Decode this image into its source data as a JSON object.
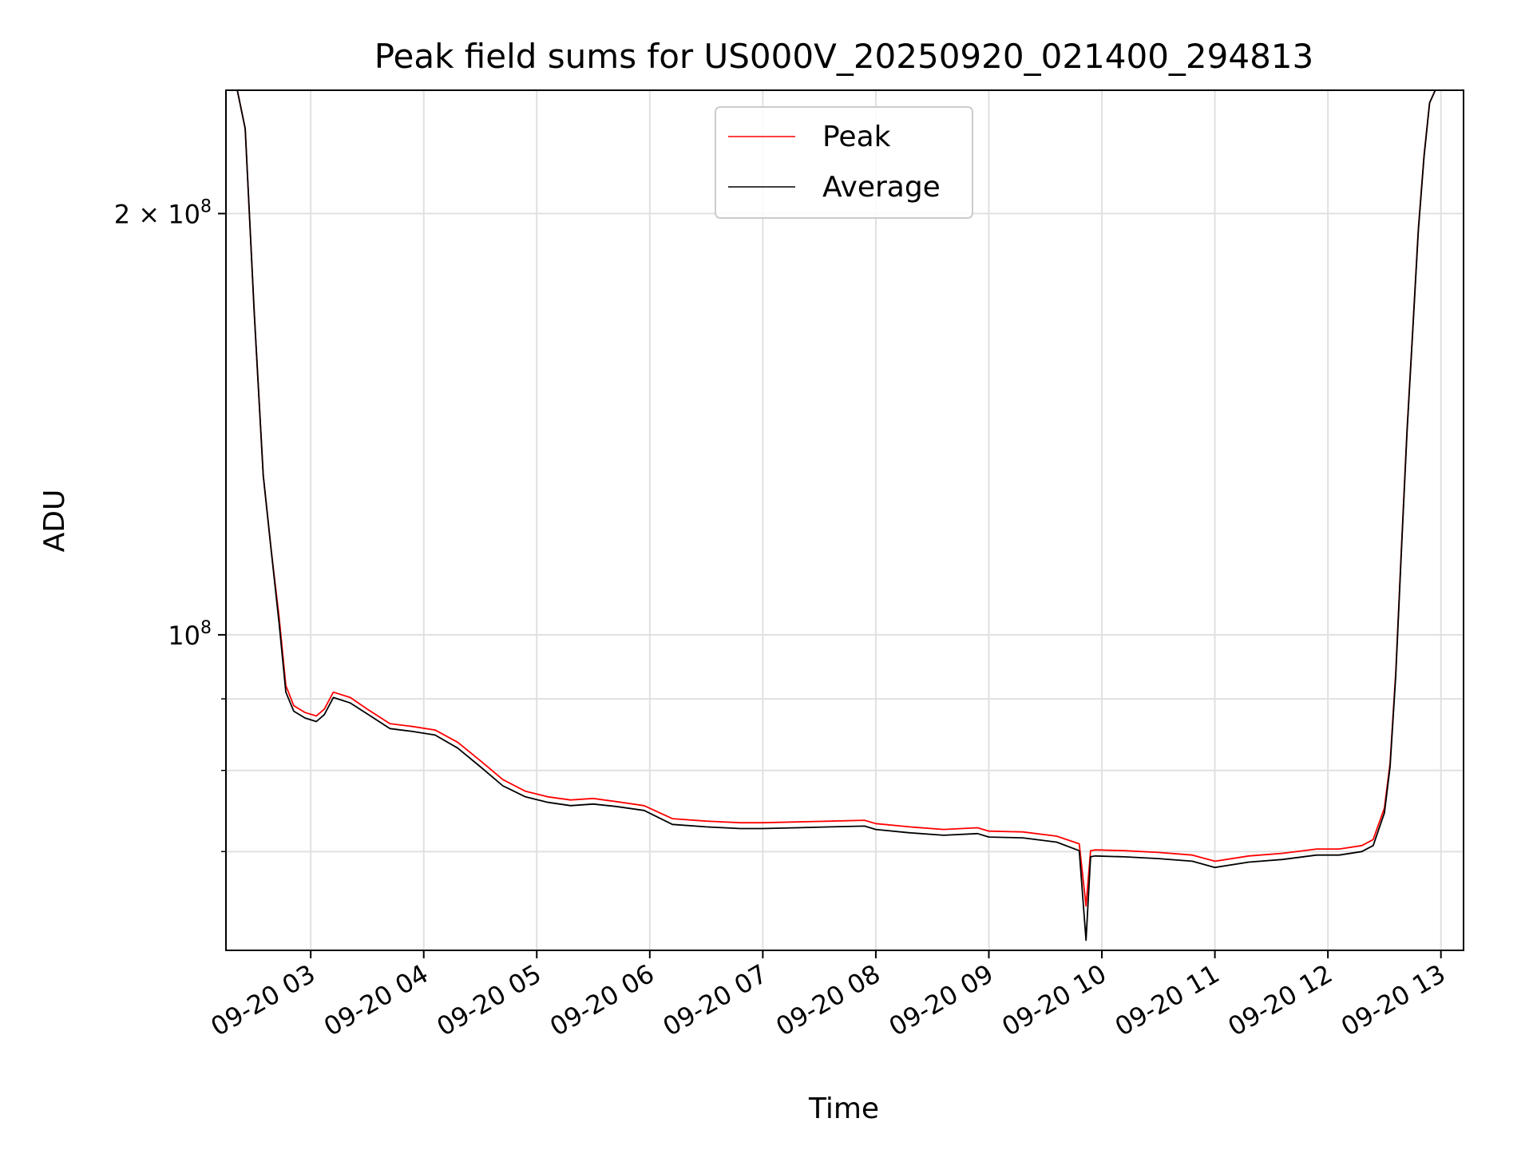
{
  "chart_data": {
    "type": "line",
    "title": "Peak field sums for US000V_20250920_021400_294813",
    "xlabel": "Time",
    "ylabel": "ADU",
    "yscale": "log",
    "ylim": [
      59500000,
      245000000
    ],
    "xlim_hours": [
      2.25,
      13.2
    ],
    "x_ticks": [
      {
        "hour": 3,
        "label": "09-20 03"
      },
      {
        "hour": 4,
        "label": "09-20 04"
      },
      {
        "hour": 5,
        "label": "09-20 05"
      },
      {
        "hour": 6,
        "label": "09-20 06"
      },
      {
        "hour": 7,
        "label": "09-20 07"
      },
      {
        "hour": 8,
        "label": "09-20 08"
      },
      {
        "hour": 9,
        "label": "09-20 09"
      },
      {
        "hour": 10,
        "label": "09-20 10"
      },
      {
        "hour": 11,
        "label": "09-20 11"
      },
      {
        "hour": 12,
        "label": "09-20 12"
      },
      {
        "hour": 13,
        "label": "09-20 13"
      }
    ],
    "y_major_ticks": [
      {
        "value": 100000000,
        "base": "10",
        "exp": "8",
        "mantissa": ""
      },
      {
        "value": 200000000,
        "base": "10",
        "exp": "8",
        "mantissa": "2 × "
      }
    ],
    "y_minor_ticks": [
      70000000,
      80000000,
      90000000
    ],
    "grid": true,
    "legend": {
      "position": "top-center",
      "entries": [
        "Peak",
        "Average"
      ]
    },
    "series": [
      {
        "name": "Peak",
        "color": "#ff0000",
        "x": [
          2.25,
          2.35,
          2.42,
          2.5,
          2.58,
          2.65,
          2.72,
          2.78,
          2.85,
          2.95,
          3.05,
          3.12,
          3.2,
          3.35,
          3.5,
          3.7,
          3.9,
          4.1,
          4.3,
          4.5,
          4.7,
          4.9,
          5.1,
          5.3,
          5.5,
          5.7,
          5.95,
          6.2,
          6.5,
          6.8,
          7.0,
          7.3,
          7.6,
          7.9,
          8.0,
          8.3,
          8.6,
          8.9,
          9.0,
          9.3,
          9.6,
          9.8,
          9.86,
          9.9,
          9.94,
          10.2,
          10.5,
          10.8,
          11.0,
          11.3,
          11.6,
          11.9,
          12.1,
          12.3,
          12.4,
          12.5,
          12.55,
          12.6,
          12.65,
          12.7,
          12.75,
          12.8,
          12.85,
          12.9,
          12.95,
          13.2
        ],
        "y": [
          245000000,
          245000000,
          230000000,
          170000000,
          130000000,
          115000000,
          103000000,
          92000000,
          89000000,
          88000000,
          87500000,
          88500000,
          91000000,
          90200000,
          88500000,
          86400000,
          86000000,
          85500000,
          83800000,
          81300000,
          78800000,
          77300000,
          76600000,
          76200000,
          76400000,
          76000000,
          75500000,
          73900000,
          73600000,
          73400000,
          73400000,
          73500000,
          73600000,
          73700000,
          73300000,
          72900000,
          72600000,
          72800000,
          72400000,
          72300000,
          71800000,
          70900000,
          64000000,
          70100000,
          70200000,
          70100000,
          69900000,
          69600000,
          68900000,
          69500000,
          69800000,
          70300000,
          70300000,
          70700000,
          71400000,
          75200000,
          81000000,
          94000000,
          115000000,
          140000000,
          165000000,
          195000000,
          220000000,
          240000000,
          245000000,
          245000000
        ]
      },
      {
        "name": "Average",
        "color": "#000000",
        "x": [
          2.25,
          2.35,
          2.42,
          2.5,
          2.58,
          2.65,
          2.72,
          2.78,
          2.85,
          2.95,
          3.05,
          3.12,
          3.2,
          3.35,
          3.5,
          3.7,
          3.9,
          4.1,
          4.3,
          4.5,
          4.7,
          4.9,
          5.1,
          5.3,
          5.5,
          5.7,
          5.95,
          6.2,
          6.5,
          6.8,
          7.0,
          7.3,
          7.6,
          7.9,
          8.0,
          8.3,
          8.6,
          8.9,
          9.0,
          9.3,
          9.6,
          9.8,
          9.86,
          9.9,
          9.94,
          10.2,
          10.5,
          10.8,
          11.0,
          11.3,
          11.6,
          11.9,
          12.1,
          12.3,
          12.4,
          12.5,
          12.55,
          12.6,
          12.65,
          12.7,
          12.75,
          12.8,
          12.85,
          12.9,
          12.95,
          13.2
        ],
        "y": [
          245000000,
          245000000,
          230000000,
          170000000,
          130000000,
          115000000,
          102000000,
          91000000,
          88200000,
          87200000,
          86700000,
          87700000,
          90200000,
          89400000,
          87800000,
          85700000,
          85300000,
          84800000,
          83000000,
          80500000,
          78000000,
          76600000,
          75900000,
          75500000,
          75700000,
          75400000,
          74900000,
          73200000,
          72900000,
          72700000,
          72700000,
          72800000,
          72900000,
          73000000,
          72600000,
          72200000,
          71900000,
          72100000,
          71700000,
          71600000,
          71100000,
          70100000,
          60500000,
          69400000,
          69500000,
          69400000,
          69200000,
          68900000,
          68200000,
          68800000,
          69100000,
          69600000,
          69600000,
          70000000,
          70700000,
          74600000,
          80500000,
          93500000,
          114500000,
          139500000,
          164500000,
          194500000,
          219500000,
          240000000,
          245000000,
          245000000
        ]
      }
    ]
  }
}
